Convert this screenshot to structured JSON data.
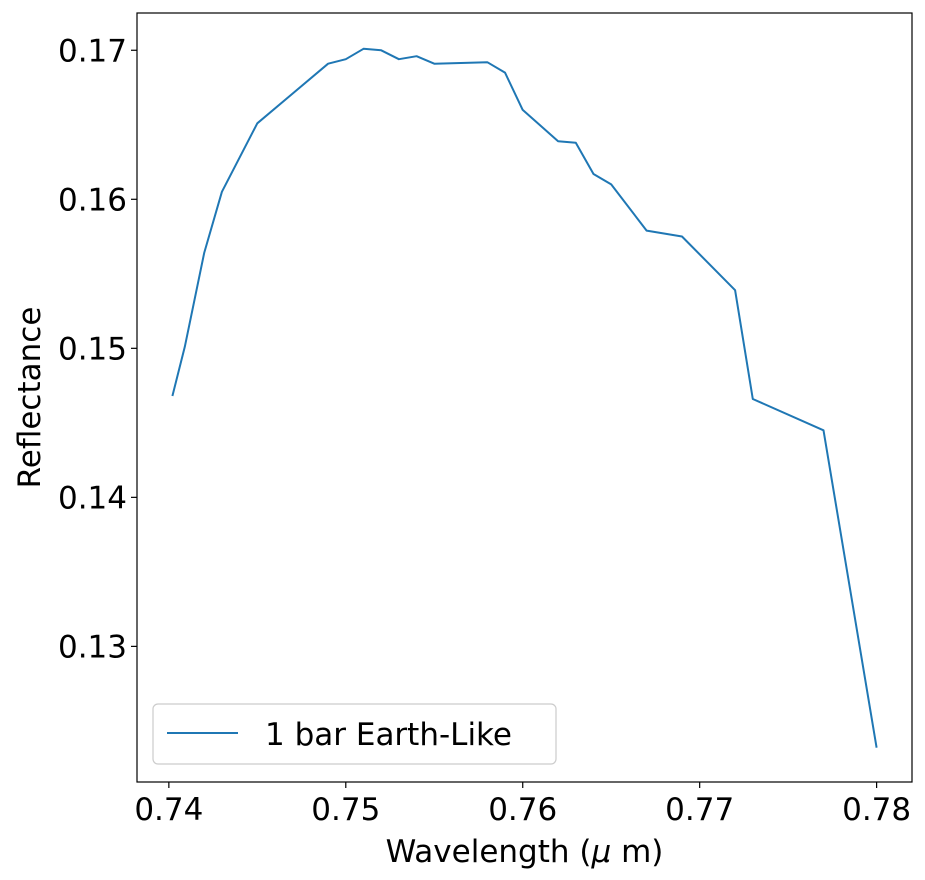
{
  "chart_data": {
    "type": "line",
    "title": "",
    "xlabel_prefix": "Wavelength (",
    "xlabel_mu": "μ",
    "xlabel_suffix": " m)",
    "ylabel": "Reflectance",
    "xlim": [
      0.7382,
      0.782
    ],
    "ylim": [
      0.1209,
      0.1725
    ],
    "xticks": [
      0.74,
      0.75,
      0.76,
      0.77,
      0.78
    ],
    "xtick_labels": [
      "0.74",
      "0.75",
      "0.76",
      "0.77",
      "0.78"
    ],
    "yticks": [
      0.13,
      0.14,
      0.15,
      0.16,
      0.17
    ],
    "ytick_labels": [
      "0.13",
      "0.14",
      "0.15",
      "0.16",
      "0.17"
    ],
    "grid": false,
    "legend_position": "lower-left",
    "series": [
      {
        "name": "1 bar Earth-Like",
        "color": "#1f77b4",
        "x": [
          0.7402,
          0.7409,
          0.742,
          0.743,
          0.745,
          0.747,
          0.749,
          0.75,
          0.751,
          0.752,
          0.753,
          0.754,
          0.755,
          0.758,
          0.759,
          0.76,
          0.762,
          0.763,
          0.764,
          0.765,
          0.767,
          0.769,
          0.772,
          0.773,
          0.777,
          0.78
        ],
        "y": [
          0.1468,
          0.1501,
          0.1564,
          0.1605,
          0.1651,
          0.1671,
          0.1691,
          0.1694,
          0.1701,
          0.17,
          0.1694,
          0.1696,
          0.1691,
          0.1692,
          0.1685,
          0.166,
          0.1639,
          0.1638,
          0.1617,
          0.161,
          0.1579,
          0.1575,
          0.1539,
          0.1466,
          0.1445,
          0.1232
        ]
      }
    ]
  }
}
